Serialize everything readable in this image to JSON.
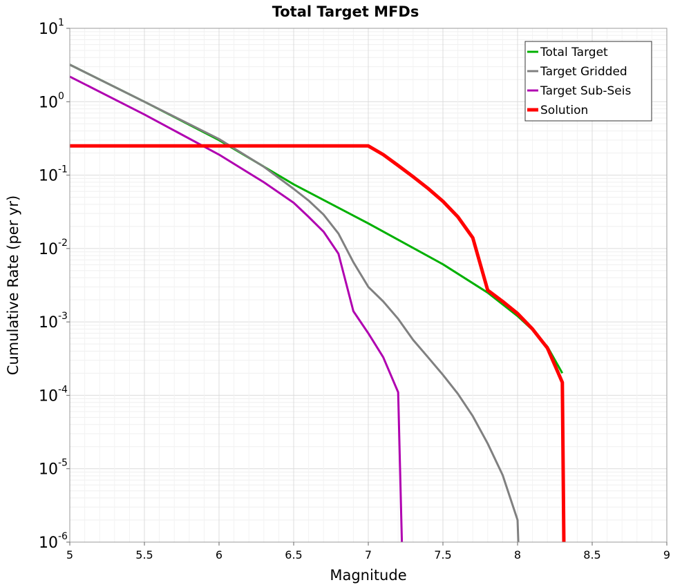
{
  "chart_data": {
    "type": "line",
    "title": "Total Target MFDs",
    "xlabel": "Magnitude",
    "ylabel": "Cumulative Rate (per yr)",
    "xlim": [
      5,
      9
    ],
    "ylim": [
      1e-06,
      10
    ],
    "y_scale": "log",
    "grid": true,
    "legend_position": "top-right",
    "x_ticks": [
      {
        "value": 5,
        "label": "5"
      },
      {
        "value": 5.5,
        "label": "5.5"
      },
      {
        "value": 6,
        "label": "6"
      },
      {
        "value": 6.5,
        "label": "6.5"
      },
      {
        "value": 7,
        "label": "7"
      },
      {
        "value": 7.5,
        "label": "7.5"
      },
      {
        "value": 8,
        "label": "8"
      },
      {
        "value": 8.5,
        "label": "8.5"
      },
      {
        "value": 9,
        "label": "9"
      }
    ],
    "y_ticks": [
      {
        "exp": 1,
        "base": "10",
        "sup": "1"
      },
      {
        "exp": 0,
        "base": "10",
        "sup": "0"
      },
      {
        "exp": -1,
        "base": "10",
        "sup": "-1"
      },
      {
        "exp": -2,
        "base": "10",
        "sup": "-2"
      },
      {
        "exp": -3,
        "base": "10",
        "sup": "-3"
      },
      {
        "exp": -4,
        "base": "10",
        "sup": "-4"
      },
      {
        "exp": -5,
        "base": "10",
        "sup": "-5"
      },
      {
        "exp": -6,
        "base": "10",
        "sup": "-6"
      }
    ],
    "series": [
      {
        "name": "Total Target",
        "color": "#00b000",
        "width": 3,
        "x": [
          5.0,
          5.5,
          6.0,
          6.5,
          7.0,
          7.5,
          7.8,
          8.0,
          8.1,
          8.2,
          8.3
        ],
        "y": [
          3.2,
          1.0,
          0.3,
          0.075,
          0.022,
          0.0061,
          0.0025,
          0.0012,
          0.00078,
          0.00046,
          0.0002
        ]
      },
      {
        "name": "Target Gridded",
        "color": "#808080",
        "width": 3,
        "x": [
          5.0,
          5.5,
          6.0,
          6.3,
          6.5,
          6.6,
          6.7,
          6.8,
          6.9,
          7.0,
          7.1,
          7.2,
          7.3,
          7.4,
          7.5,
          7.6,
          7.7,
          7.8,
          7.9,
          8.0,
          8.005
        ],
        "y": [
          3.2,
          1.0,
          0.31,
          0.13,
          0.065,
          0.045,
          0.029,
          0.016,
          0.0065,
          0.003,
          0.0019,
          0.0011,
          0.00057,
          0.00033,
          0.00019,
          0.000105,
          5.2e-05,
          2.2e-05,
          8.2e-06,
          2e-06,
          1e-06
        ]
      },
      {
        "name": "Target Sub-Seis",
        "color": "#b000b0",
        "width": 3,
        "x": [
          5.0,
          5.5,
          6.0,
          6.3,
          6.5,
          6.6,
          6.7,
          6.8,
          6.9,
          7.0,
          7.1,
          7.2,
          7.225
        ],
        "y": [
          2.2,
          0.67,
          0.19,
          0.08,
          0.042,
          0.027,
          0.017,
          0.0085,
          0.0014,
          0.0007,
          0.00033,
          0.00011,
          1e-06
        ]
      },
      {
        "name": "Solution",
        "color": "#ff0000",
        "width": 5,
        "x": [
          5.0,
          7.0,
          7.1,
          7.2,
          7.3,
          7.4,
          7.5,
          7.6,
          7.7,
          7.8,
          7.9,
          8.0,
          8.1,
          8.2,
          8.3,
          8.31
        ],
        "y": [
          0.25,
          0.25,
          0.19,
          0.135,
          0.095,
          0.066,
          0.044,
          0.027,
          0.014,
          0.0027,
          0.0019,
          0.0013,
          0.0008,
          0.00044,
          0.00015,
          1e-06
        ]
      }
    ]
  }
}
